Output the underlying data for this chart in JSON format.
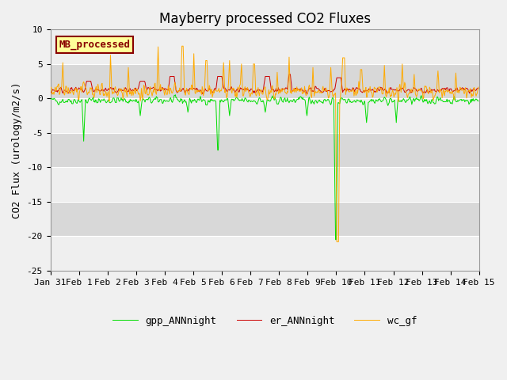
{
  "title": "Mayberry processed CO2 Fluxes",
  "ylabel": "CO2 Flux (urology/m2/s)",
  "ylim": [
    -25,
    10
  ],
  "yticks": [
    10,
    5,
    0,
    -5,
    -10,
    -15,
    -20,
    -25
  ],
  "x_tick_labels": [
    "Jan 31",
    "Feb 1",
    "Feb 2",
    "Feb 3",
    "Feb 4",
    "Feb 5",
    "Feb 6",
    "Feb 7",
    "Feb 8",
    "Feb 9",
    "Feb 10",
    "Feb 11",
    "Feb 12",
    "Feb 13",
    "Feb 14",
    "Feb 15"
  ],
  "legend_label": "MB_processed",
  "line_labels": [
    "gpp_ANNnight",
    "er_ANNnight",
    "wc_gf"
  ],
  "line_colors": [
    "#00dd00",
    "#cc0000",
    "#ffaa00"
  ],
  "fig_facecolor": "#f0f0f0",
  "plot_bg_color": "#d8d8d8",
  "title_fontsize": 12,
  "axis_fontsize": 9,
  "tick_fontsize": 8,
  "legend_box_facecolor": "#ffff99",
  "legend_box_edgecolor": "#880000",
  "legend_text_color": "#880000",
  "seed": 42,
  "n_points": 720
}
